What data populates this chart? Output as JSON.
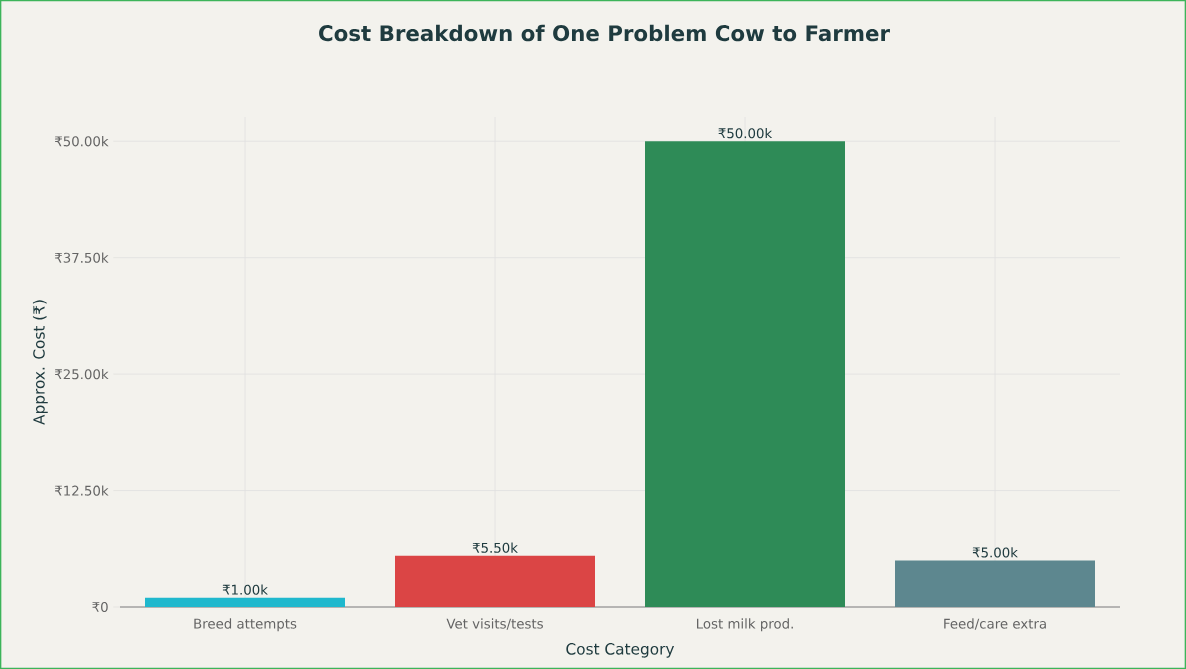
{
  "chart_data": {
    "type": "bar",
    "title": "Cost Breakdown of One Problem Cow to Farmer",
    "xlabel": "Cost Category",
    "ylabel": "Approx. Cost (₹)",
    "categories": [
      "Breed attempts",
      "Vet visits/tests",
      "Lost milk prod.",
      "Feed/care extra"
    ],
    "values": [
      1000,
      5500,
      50000,
      5000
    ],
    "colors": [
      "#1fb8cd",
      "#db4545",
      "#2e8b57",
      "#5d878f"
    ],
    "value_labels": [
      "₹1.00k",
      "₹5.50k",
      "₹50.00k",
      "₹5.00k"
    ],
    "ylim": [
      0,
      52600
    ],
    "yticks": [
      {
        "value": 0,
        "label": "₹0"
      },
      {
        "value": 12500,
        "label": "₹12.50k"
      },
      {
        "value": 25000,
        "label": "₹25.00k"
      },
      {
        "value": 37500,
        "label": "₹37.50k"
      },
      {
        "value": 50000,
        "label": "₹50.00k"
      }
    ],
    "grid": true
  }
}
